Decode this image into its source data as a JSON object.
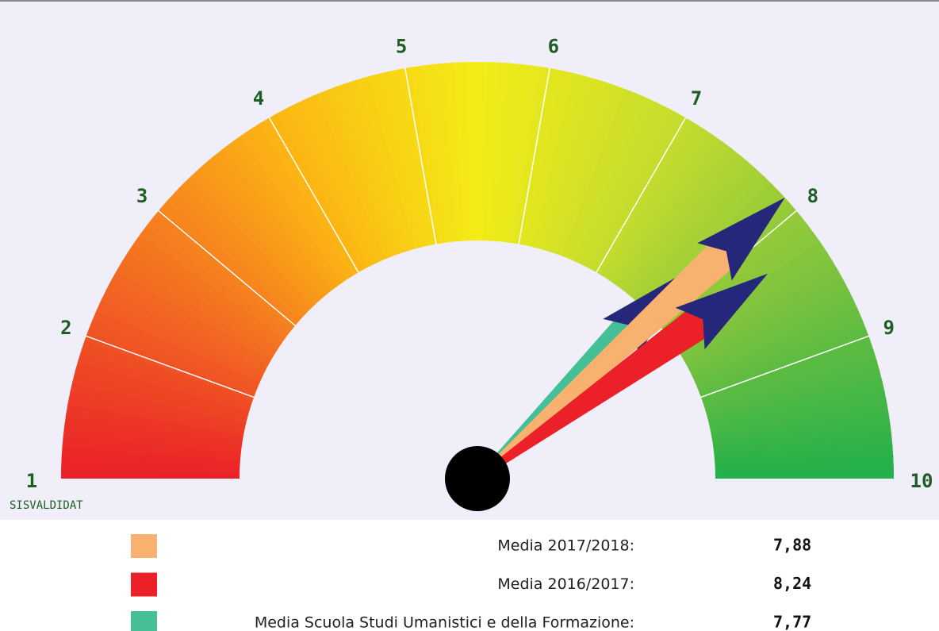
{
  "chart_data": {
    "type": "gauge",
    "watermark": "SISVALDIDAT",
    "ylim": [
      1,
      10
    ],
    "yticks": [
      1,
      2,
      3,
      4,
      5,
      6,
      7,
      8,
      9,
      10
    ],
    "band_colors": [
      "#ea1f28",
      "#f26a22",
      "#fcb514",
      "#f4ec16",
      "#c4dc2e",
      "#7cc23e",
      "#22b04a"
    ],
    "needle_head_color": "#25277a",
    "series": [
      {
        "name": "Media 2017/2018:",
        "color": "#f8b16f",
        "values": [
          7.88
        ],
        "value_labels": [
          "7,88"
        ]
      },
      {
        "name": "Media 2016/2017:",
        "color": "#ec2028",
        "values": [
          8.24
        ],
        "value_labels": [
          "8,24"
        ]
      },
      {
        "name": "Media Scuola Studi Umanistici e della Formazione:",
        "color": "#44bf96",
        "values": [
          7.77
        ],
        "value_labels": [
          "7,77"
        ]
      }
    ]
  }
}
